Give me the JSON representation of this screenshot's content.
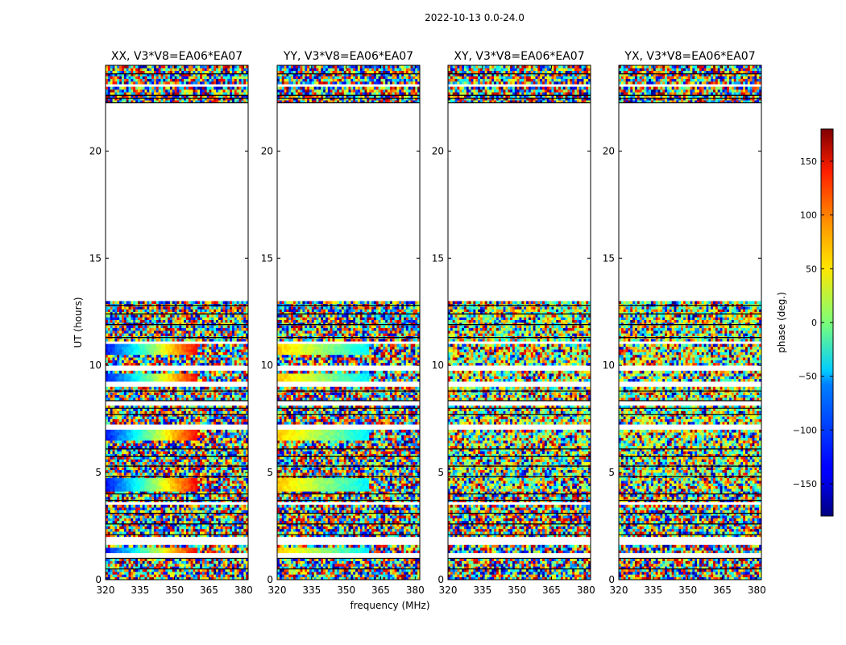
{
  "chart_data": {
    "type": "heatmap",
    "suptitle": "2022-10-13 0.0-24.0",
    "xlabel": "frequency (MHz)",
    "ylabel": "UT (hours)",
    "xlim": [
      320,
      382
    ],
    "ylim": [
      0,
      24
    ],
    "xticks": [
      320,
      335,
      350,
      365,
      380
    ],
    "yticks": [
      0,
      5,
      10,
      15,
      20
    ],
    "panels": [
      {
        "title": "XX, V3*V8=EA06*EA07",
        "pol": "XX"
      },
      {
        "title": "YY, V3*V8=EA06*EA07",
        "pol": "YY"
      },
      {
        "title": "XY, V3*V8=EA06*EA07",
        "pol": "XY"
      },
      {
        "title": "YX, V3*V8=EA06*EA07",
        "pol": "YX"
      }
    ],
    "no_data_ranges_hours": [
      [
        12.9,
        22.2
      ]
    ],
    "colorbar": {
      "label": "phase (deg.)",
      "range": [
        -180,
        180
      ],
      "ticks": [
        -150,
        -100,
        -50,
        0,
        50,
        100,
        150
      ],
      "colormap": "jet"
    }
  }
}
